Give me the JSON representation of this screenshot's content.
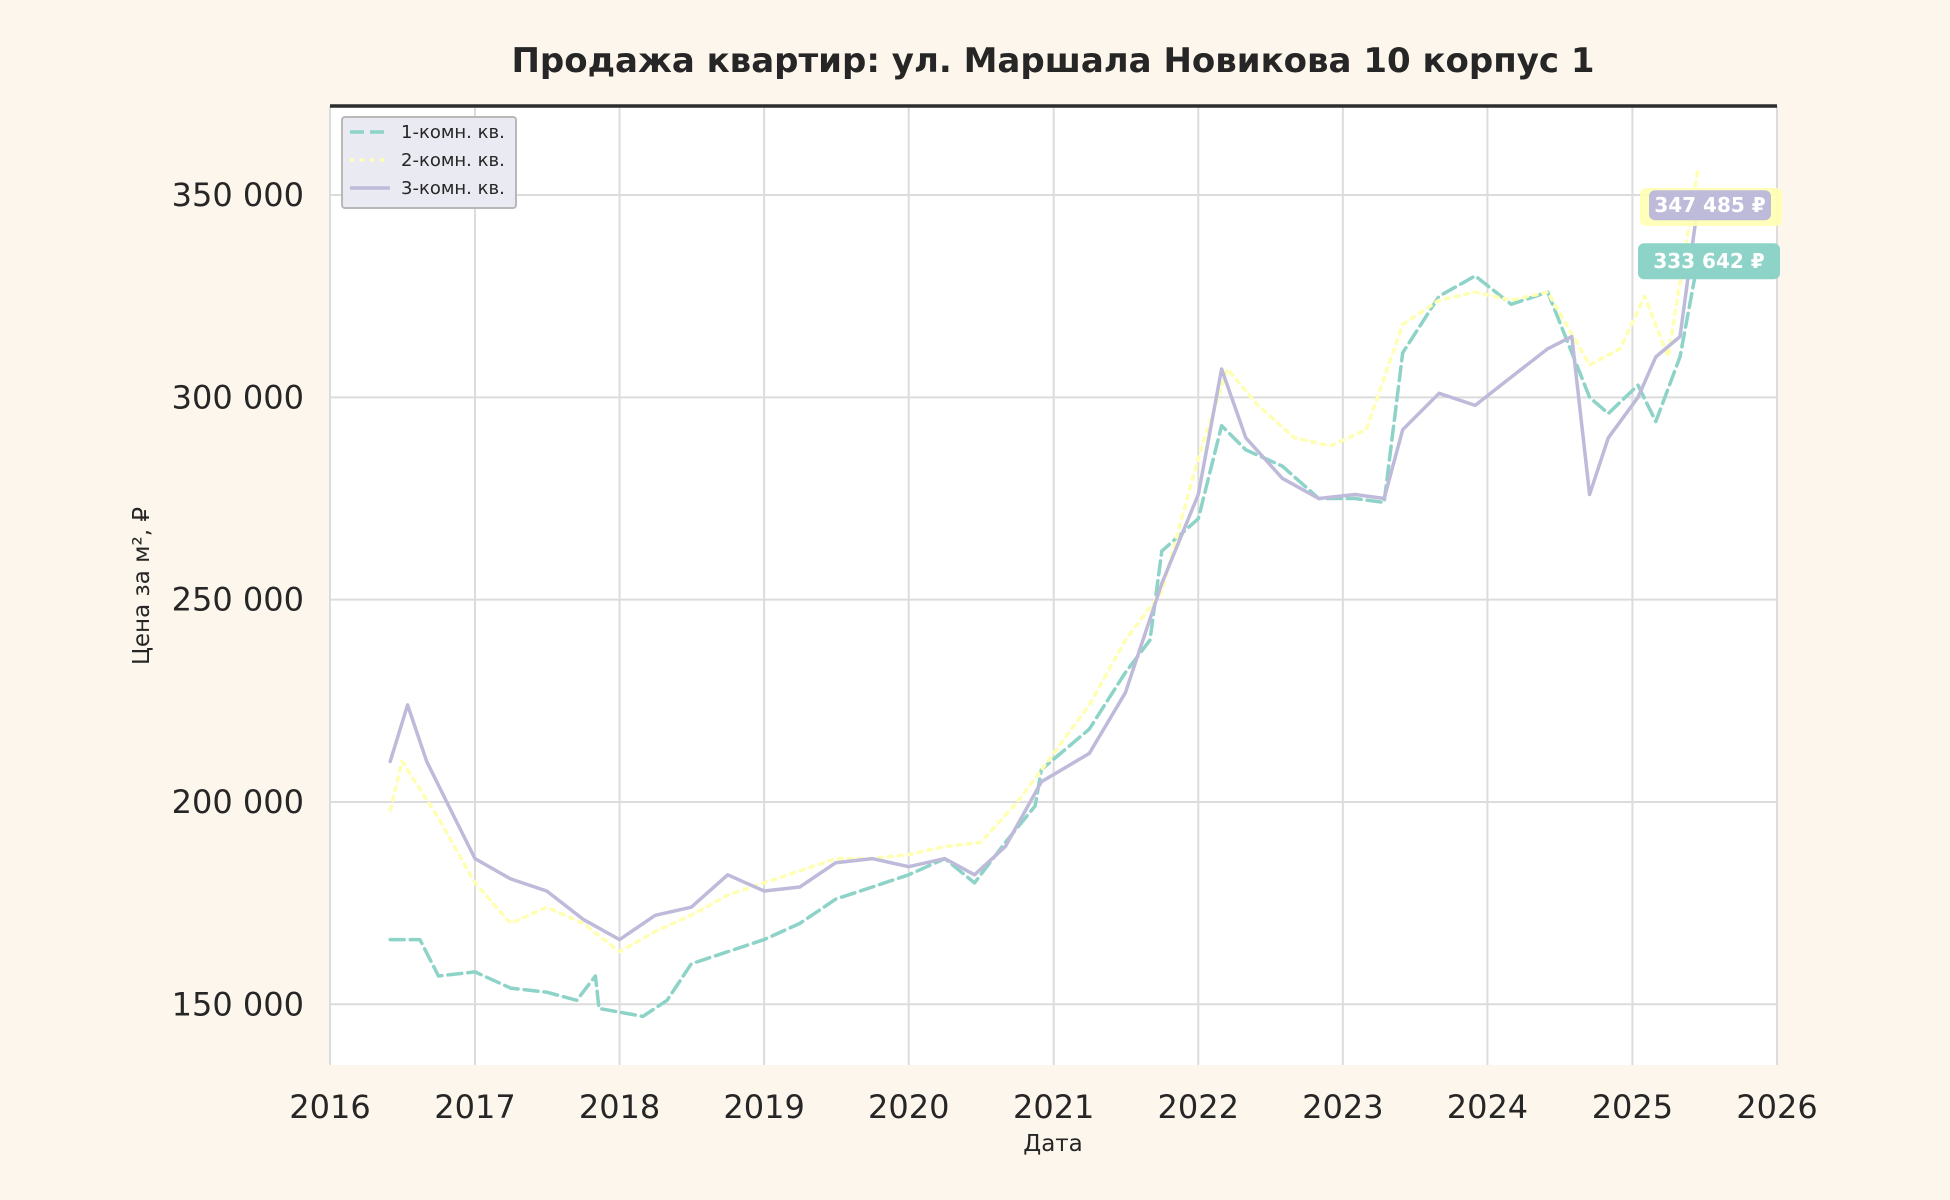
{
  "chart_data": {
    "type": "line",
    "title": "Продажа квартир: ул. Маршала Новикова 10 корпус 1",
    "xlabel": "Дата",
    "ylabel": "Цена за м², ₽",
    "xlim": [
      "2016-01-01",
      "2026-01-01"
    ],
    "ylim": [
      135000,
      372000
    ],
    "x_ticks": [
      {
        "value": "2016-01-01",
        "label": "2016"
      },
      {
        "value": "2017-01-01",
        "label": "2017"
      },
      {
        "value": "2018-01-01",
        "label": "2018"
      },
      {
        "value": "2019-01-01",
        "label": "2019"
      },
      {
        "value": "2020-01-01",
        "label": "2020"
      },
      {
        "value": "2021-01-01",
        "label": "2021"
      },
      {
        "value": "2022-01-01",
        "label": "2022"
      },
      {
        "value": "2023-01-01",
        "label": "2023"
      },
      {
        "value": "2024-01-01",
        "label": "2024"
      },
      {
        "value": "2025-01-01",
        "label": "2025"
      },
      {
        "value": "2026-01-01",
        "label": "2026"
      }
    ],
    "y_ticks": [
      {
        "value": 150000,
        "label": "150 000"
      },
      {
        "value": 200000,
        "label": "200 000"
      },
      {
        "value": 250000,
        "label": "250 000"
      },
      {
        "value": 300000,
        "label": "300 000"
      },
      {
        "value": 350000,
        "label": "350 000"
      }
    ],
    "grid": true,
    "legend_position": "top-left",
    "series": [
      {
        "name": "1-комн. кв.",
        "color": "#8dd3c7",
        "dash": "dashed",
        "x": [
          "2016-06-01",
          "2016-08-15",
          "2016-10-01",
          "2017-01-01",
          "2017-04-01",
          "2017-07-01",
          "2017-09-15",
          "2017-11-01",
          "2017-11-10",
          "2018-03-01",
          "2018-05-01",
          "2018-07-01",
          "2018-10-01",
          "2019-01-01",
          "2019-04-01",
          "2019-07-01",
          "2019-10-01",
          "2020-01-01",
          "2020-04-01",
          "2020-06-15",
          "2020-09-01",
          "2020-11-15",
          "2020-12-01",
          "2021-04-01",
          "2021-07-01",
          "2021-09-01",
          "2021-10-01",
          "2022-01-01",
          "2022-03-01",
          "2022-05-01",
          "2022-08-01",
          "2022-11-01",
          "2023-02-01",
          "2023-04-15",
          "2023-06-01",
          "2023-09-01",
          "2023-12-01",
          "2024-03-01",
          "2024-06-01",
          "2024-09-15",
          "2024-11-01",
          "2025-01-15",
          "2025-03-01",
          "2025-05-01",
          "2025-06-15"
        ],
        "y": [
          166000,
          166000,
          157000,
          158000,
          154000,
          153000,
          151000,
          157000,
          149000,
          147000,
          151000,
          160000,
          163000,
          166000,
          170000,
          176000,
          179000,
          182000,
          186000,
          180000,
          190000,
          199000,
          208000,
          218000,
          232000,
          240000,
          262000,
          270000,
          293000,
          287000,
          283000,
          275000,
          275000,
          274000,
          311000,
          325000,
          330000,
          323000,
          326000,
          300000,
          296000,
          303000,
          294000,
          310000,
          333642
        ]
      },
      {
        "name": "2-комн. кв.",
        "color": "#ffffb3",
        "dash": "dotted",
        "x": [
          "2016-06-01",
          "2016-07-01",
          "2016-10-01",
          "2017-01-01",
          "2017-04-01",
          "2017-07-01",
          "2017-10-01",
          "2018-01-01",
          "2018-04-01",
          "2018-07-01",
          "2018-10-01",
          "2019-01-01",
          "2019-04-01",
          "2019-07-01",
          "2019-10-01",
          "2020-01-01",
          "2020-04-01",
          "2020-07-01",
          "2020-10-01",
          "2021-01-01",
          "2021-04-01",
          "2021-07-01",
          "2021-10-01",
          "2022-01-01",
          "2022-03-15",
          "2022-06-01",
          "2022-09-01",
          "2022-12-01",
          "2023-03-01",
          "2023-06-01",
          "2023-09-01",
          "2023-12-01",
          "2024-03-01",
          "2024-06-01",
          "2024-09-15",
          "2024-12-01",
          "2025-02-01",
          "2025-04-01",
          "2025-06-15"
        ],
        "y": [
          198000,
          210000,
          196000,
          180000,
          170000,
          174000,
          170000,
          163000,
          168000,
          172000,
          177000,
          180000,
          183000,
          186000,
          186000,
          187000,
          189000,
          190000,
          200000,
          212000,
          224000,
          240000,
          252000,
          285000,
          307000,
          298000,
          290000,
          288000,
          292000,
          318000,
          324000,
          326000,
          324000,
          326000,
          308000,
          312000,
          325000,
          310000,
          356000
        ]
      },
      {
        "name": "3-комн. кв.",
        "color": "#bebada",
        "dash": "solid",
        "x": [
          "2016-06-01",
          "2016-07-15",
          "2016-09-01",
          "2016-11-01",
          "2017-01-01",
          "2017-04-01",
          "2017-07-01",
          "2017-10-01",
          "2018-01-01",
          "2018-04-01",
          "2018-07-01",
          "2018-10-01",
          "2019-01-01",
          "2019-04-01",
          "2019-07-01",
          "2019-10-01",
          "2020-01-01",
          "2020-04-01",
          "2020-06-15",
          "2020-09-01",
          "2020-12-01",
          "2021-04-01",
          "2021-07-01",
          "2021-10-01",
          "2022-01-01",
          "2022-03-01",
          "2022-05-01",
          "2022-08-01",
          "2022-11-01",
          "2023-02-01",
          "2023-04-15",
          "2023-06-01",
          "2023-09-01",
          "2023-12-01",
          "2024-03-01",
          "2024-06-01",
          "2024-08-01",
          "2024-09-15",
          "2024-11-01",
          "2025-01-15",
          "2025-03-01",
          "2025-05-01",
          "2025-06-15"
        ],
        "y": [
          210000,
          224000,
          210000,
          198000,
          186000,
          181000,
          178000,
          171000,
          166000,
          172000,
          174000,
          182000,
          178000,
          179000,
          185000,
          186000,
          184000,
          186000,
          182000,
          189000,
          205000,
          212000,
          227000,
          254000,
          276000,
          307000,
          290000,
          280000,
          275000,
          276000,
          275000,
          292000,
          301000,
          298000,
          305000,
          312000,
          315000,
          276000,
          290000,
          300000,
          310000,
          315000,
          347485
        ]
      }
    ],
    "last_value_labels": [
      {
        "series": "3-комн. кв.",
        "text": "347 485 ₽",
        "value": 347485
      },
      {
        "series": "1-комн. кв.",
        "text": "333 642 ₽",
        "value": 333642
      }
    ]
  }
}
